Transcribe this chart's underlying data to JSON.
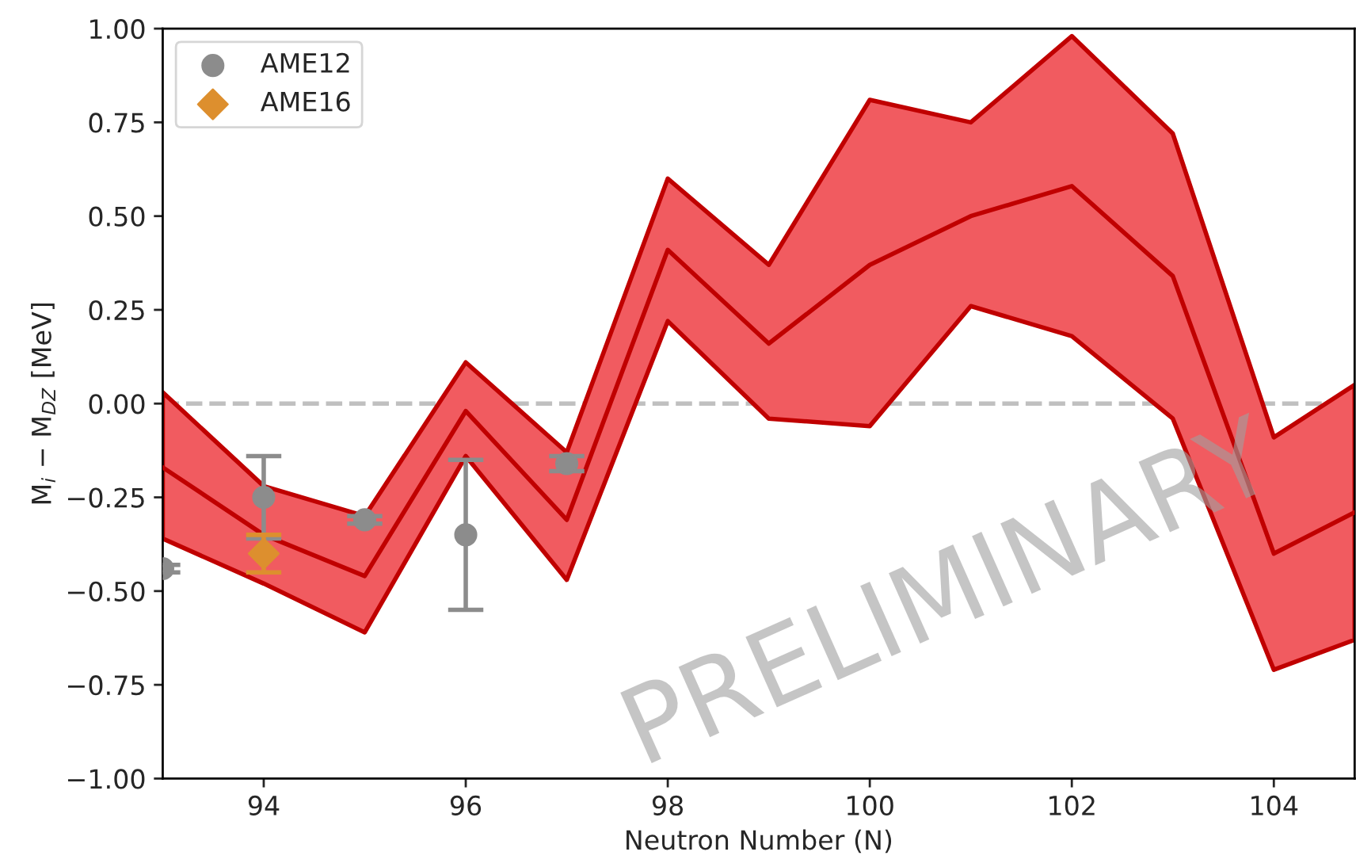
{
  "chart_data": {
    "type": "line",
    "xlabel": "Neutron Number (N)",
    "ylabel": "M$_{i}$ − M$_{DZ}$ [MeV]",
    "xlim": [
      93,
      104.8
    ],
    "ylim": [
      -1.0,
      1.0
    ],
    "xticks": [
      94,
      96,
      98,
      100,
      102,
      104
    ],
    "yticks": [
      {
        "value": -1.0,
        "label": "−1.00"
      },
      {
        "value": -0.75,
        "label": "−0.75"
      },
      {
        "value": -0.5,
        "label": "−0.50"
      },
      {
        "value": -0.25,
        "label": "−0.25"
      },
      {
        "value": 0.0,
        "label": "0.00"
      },
      {
        "value": 0.25,
        "label": "0.25"
      },
      {
        "value": 0.5,
        "label": "0.50"
      },
      {
        "value": 0.75,
        "label": "0.75"
      },
      {
        "value": 1.0,
        "label": "1.00"
      }
    ],
    "grid": false,
    "legend": "top left",
    "ref_lines": [
      {
        "axis": "y",
        "value": 0,
        "color": "#c0c0c0",
        "line_style": "dashed"
      }
    ],
    "annotations": [
      "PRELIMINARY"
    ],
    "series": [
      {
        "color": "#c00000",
        "marker": "none",
        "x": [
          93,
          94,
          95,
          96,
          97,
          98,
          99,
          100,
          101,
          102,
          103,
          104,
          104.8
        ],
        "values": [
          -0.17,
          -0.35,
          -0.46,
          -0.02,
          -0.31,
          0.41,
          0.16,
          0.37,
          0.5,
          0.58,
          0.34,
          -0.4,
          -0.29
        ],
        "lower": [
          -0.36,
          -0.48,
          -0.61,
          -0.14,
          -0.47,
          0.22,
          -0.04,
          -0.06,
          0.26,
          0.18,
          -0.04,
          -0.71,
          -0.63
        ],
        "upper": [
          0.03,
          -0.22,
          -0.3,
          0.11,
          -0.13,
          0.6,
          0.37,
          0.81,
          0.75,
          0.98,
          0.72,
          -0.09,
          0.05
        ]
      },
      {
        "type": "scatter",
        "name": "AME12",
        "color": "#8c8c8c",
        "marker": "circle",
        "x": [
          93,
          94,
          95,
          96,
          97
        ],
        "values": [
          -0.44,
          -0.25,
          -0.31,
          -0.35,
          -0.16
        ],
        "errors": [
          0.01,
          0.11,
          0.01,
          0.2,
          0.02
        ]
      },
      {
        "type": "scatter",
        "name": "AME16",
        "color": "#dd8f2e",
        "marker": "diamond",
        "x": [
          94
        ],
        "values": [
          -0.4
        ],
        "errors": [
          0.05
        ]
      }
    ]
  }
}
